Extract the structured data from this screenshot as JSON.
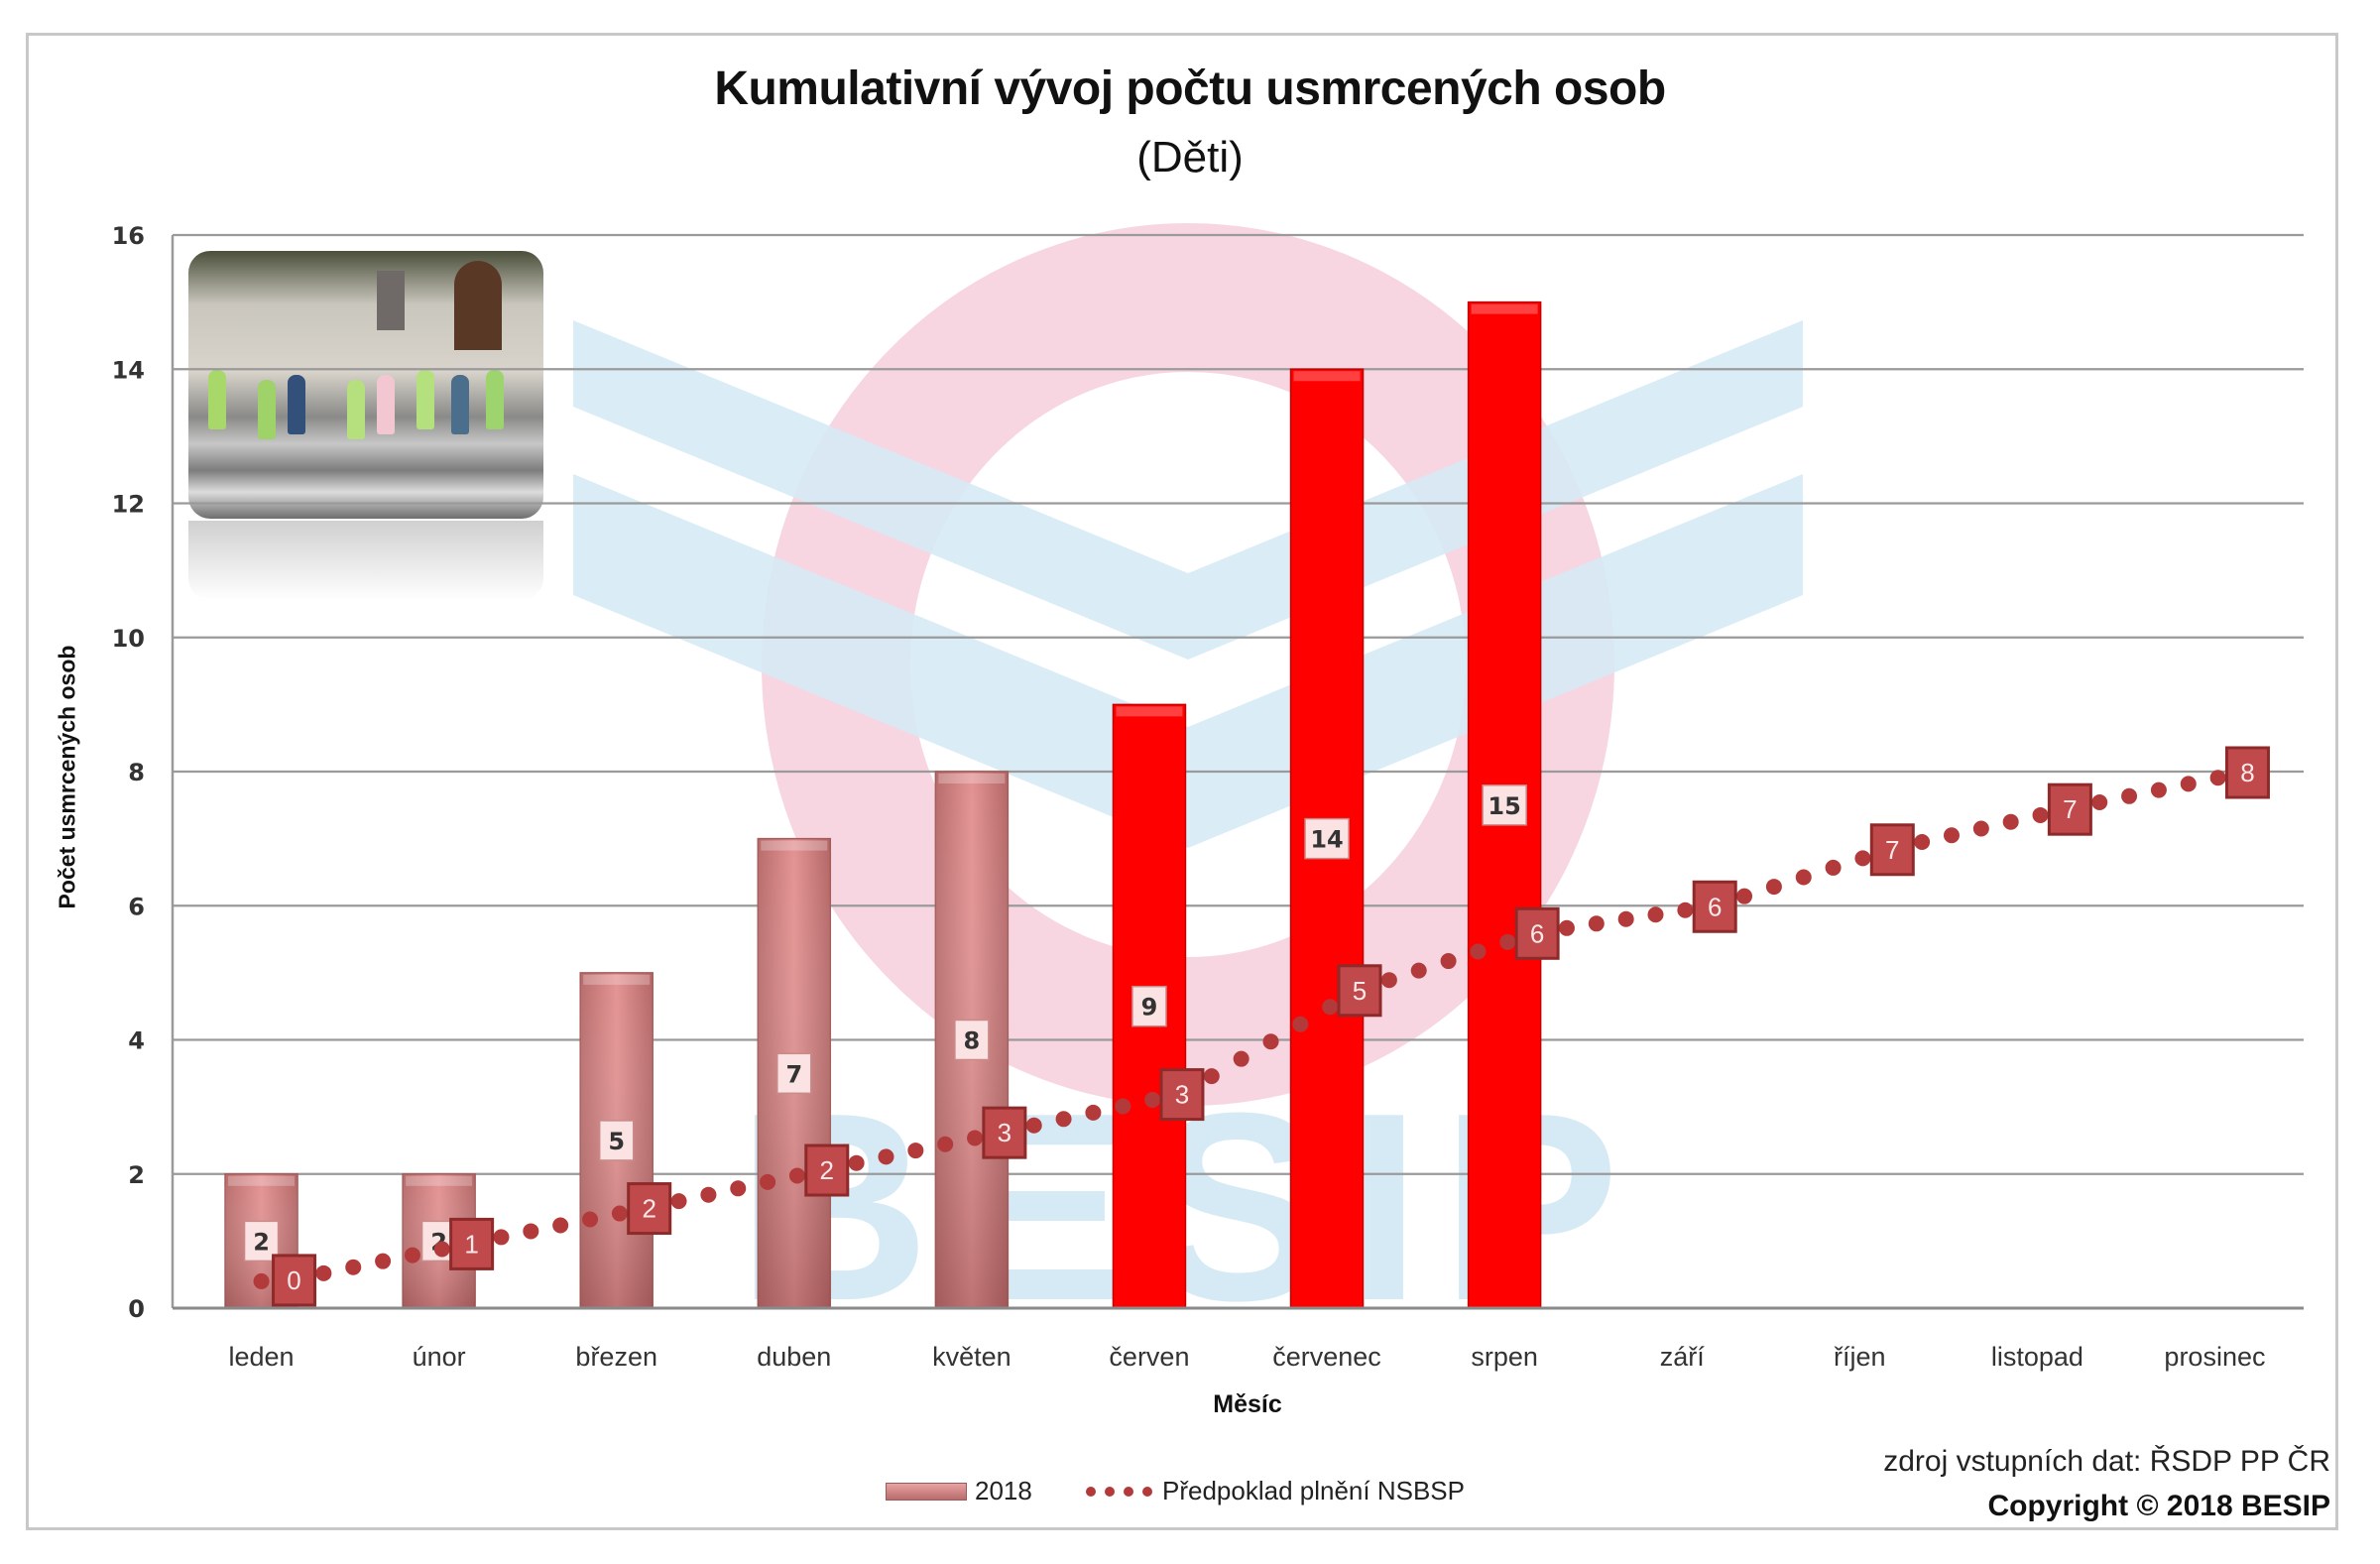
{
  "title": "Kumulativní vývoj počtu usmrcených osob",
  "subtitle": "(Děti)",
  "y_axis_label": "Počet usmrcených osob",
  "x_axis_label": "Měsíc",
  "legend": {
    "bar_label": "2018",
    "line_label": "Předpoklad plnění NSBSP"
  },
  "source": "zdroj vstupních dat: ŘSDP PP ČR",
  "copyright": "Copyright © 2018 BESIP",
  "colors": {
    "bar_past": "#d98585",
    "bar_current": "#ff0000",
    "line": "#b33a3a",
    "line_label_bg": "#c0494b",
    "gridline": "#9a9a9a",
    "watermark_pink": "#f7d6e2",
    "watermark_blue": "#d6eaf5"
  },
  "chart_data": {
    "type": "bar",
    "title": "Kumulativní vývoj počtu usmrcených osob (Děti)",
    "xlabel": "Měsíc",
    "ylabel": "Počet usmrcených osob",
    "ylim": [
      0,
      16
    ],
    "yticks": [
      0,
      2,
      4,
      6,
      8,
      10,
      12,
      14,
      16
    ],
    "grid": true,
    "legend_position": "bottom",
    "categories": [
      "leden",
      "únor",
      "březen",
      "duben",
      "květen",
      "červen",
      "červenec",
      "srpen",
      "září",
      "říjen",
      "listopad",
      "prosinec"
    ],
    "series": [
      {
        "name": "2018",
        "type": "bar",
        "values": [
          2,
          2,
          5,
          7,
          8,
          9,
          14,
          15,
          null,
          null,
          null,
          null
        ],
        "labels": [
          "2",
          "2",
          "5",
          "7",
          "8",
          "9",
          "14",
          "15",
          "",
          "",
          "",
          ""
        ],
        "highlight_from_index": 5
      },
      {
        "name": "Předpoklad plnění NSBSP",
        "type": "line",
        "style": "dotted",
        "values": [
          0.43,
          0.97,
          1.5,
          2.07,
          2.63,
          3.2,
          4.75,
          5.6,
          6.0,
          6.85,
          7.45,
          8.0
        ],
        "labels": [
          "0",
          "1",
          "2",
          "2",
          "3",
          "3",
          "5",
          "6",
          "6",
          "7",
          "7",
          "8"
        ]
      }
    ]
  }
}
